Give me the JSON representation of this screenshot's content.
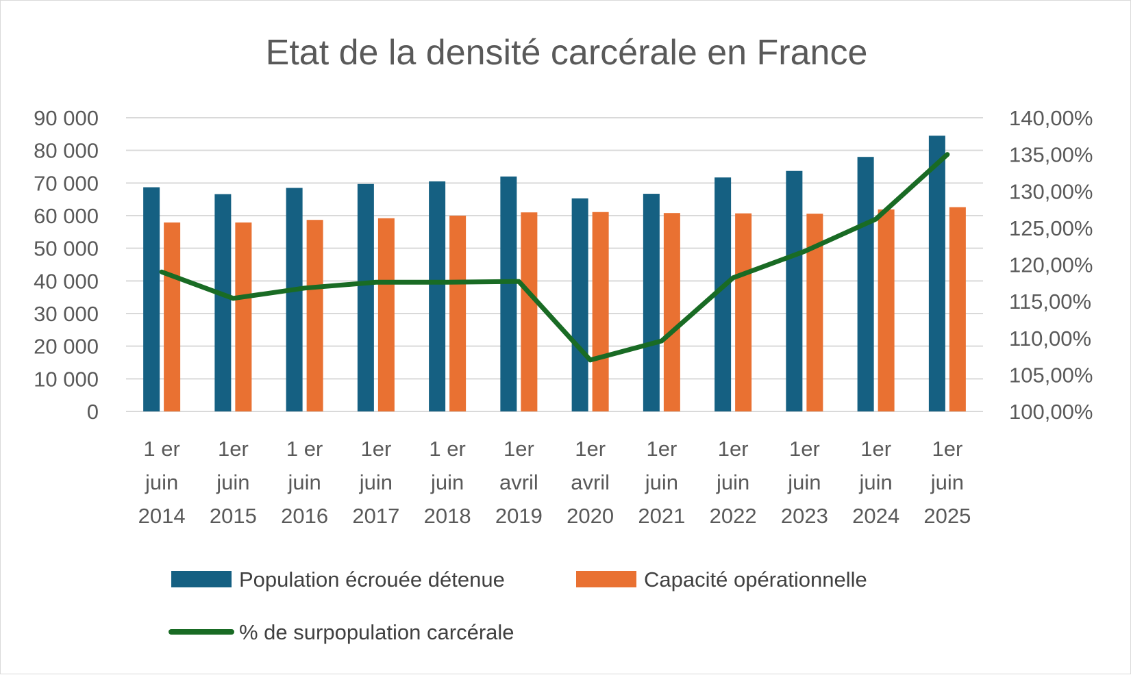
{
  "chart_data": {
    "type": "bar",
    "title": "Etat de la densité carcérale en France",
    "categories": [
      [
        "1 er",
        "juin",
        "2014"
      ],
      [
        "1er",
        "juin",
        "2015"
      ],
      [
        "1 er",
        "juin",
        "2016"
      ],
      [
        "1er",
        "juin",
        "2017"
      ],
      [
        "1 er",
        "juin",
        "2018"
      ],
      [
        "1er",
        "avril",
        "2019"
      ],
      [
        "1er",
        "avril",
        "2020"
      ],
      [
        "1er",
        "juin",
        "2021"
      ],
      [
        "1er",
        "juin",
        "2022"
      ],
      [
        "1er",
        "juin",
        "2023"
      ],
      [
        "1er",
        "juin",
        "2024"
      ],
      [
        "1er",
        "juin",
        "2025"
      ]
    ],
    "series": [
      {
        "name": "Population écrouée détenue",
        "type": "bar",
        "axis": "left",
        "color": "#156082",
        "values": [
          68700,
          66600,
          68500,
          69700,
          70500,
          72000,
          65300,
          66700,
          71700,
          73700,
          78000,
          84500
        ]
      },
      {
        "name": "Capacité opérationnelle",
        "type": "bar",
        "axis": "left",
        "color": "#E97132",
        "values": [
          57900,
          57900,
          58700,
          59200,
          60000,
          61000,
          61100,
          60800,
          60700,
          60600,
          61900,
          62600
        ]
      },
      {
        "name": "% de surpopulation carcérale",
        "type": "line",
        "axis": "right",
        "color": "#196B24",
        "values": [
          119.0,
          115.4,
          116.8,
          117.6,
          117.6,
          117.7,
          107.0,
          109.6,
          118.2,
          121.8,
          126.2,
          135.0
        ]
      }
    ],
    "y_left": {
      "min": 0,
      "max": 90000,
      "step": 10000,
      "tick_labels": [
        "0",
        "10 000",
        "20 000",
        "30 000",
        "40 000",
        "50 000",
        "60 000",
        "70 000",
        "80 000",
        "90 000"
      ]
    },
    "y_right": {
      "min": 100,
      "max": 140,
      "step": 5,
      "tick_labels": [
        "100,00%",
        "105,00%",
        "110,00%",
        "115,00%",
        "120,00%",
        "125,00%",
        "130,00%",
        "135,00%",
        "140,00%"
      ]
    },
    "grid": true,
    "legend_position": "bottom",
    "gridline_color": "#d9d9d9"
  }
}
